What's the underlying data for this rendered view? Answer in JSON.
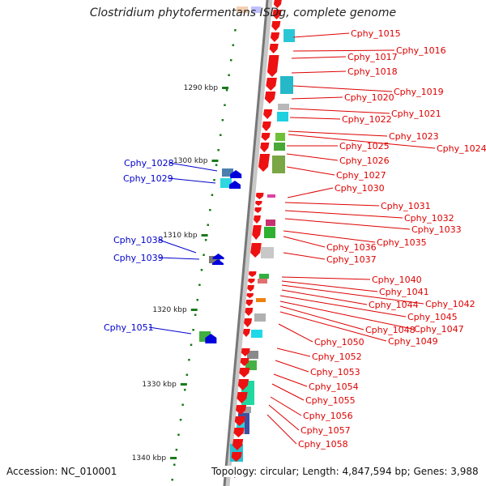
{
  "title": "Clostridium phytofermentans ISDg, complete genome",
  "accession": "Accession: NC_010001",
  "summary": "Topology: circular; Length: 4,847,594 bp; Genes: 3,988",
  "colors": {
    "ruler_dot": "#1a7a1a",
    "axis": "#777777",
    "plus_gene_label": "#0000cc",
    "minus_gene_label": "#dd0000",
    "minus_gene": "#ee1111",
    "plus_gene": "#0000dd"
  },
  "ruler_ticks": [
    "1290 kbp",
    "1300 kbp",
    "1310 kbp",
    "1320 kbp",
    "1330 kbp",
    "1340 kbp"
  ],
  "plus_strand_genes": [
    "Cphy_1028",
    "Cphy_1029",
    "Cphy_1038",
    "Cphy_1039",
    "Cphy_1051"
  ],
  "minus_strand_genes": [
    "Cphy_1015",
    "Cphy_1016",
    "Cphy_1017",
    "Cphy_1018",
    "Cphy_1019",
    "Cphy_1020",
    "Cphy_1021",
    "Cphy_1022",
    "Cphy_1023",
    "Cphy_1024",
    "Cphy_1025",
    "Cphy_1026",
    "Cphy_1027",
    "Cphy_1030",
    "Cphy_1031",
    "Cphy_1032",
    "Cphy_1033",
    "Cphy_1035",
    "Cphy_1036",
    "Cphy_1037",
    "Cphy_1040",
    "Cphy_1041",
    "Cphy_1042",
    "Cphy_1044",
    "Cphy_1045",
    "Cphy_1047",
    "Cphy_1048",
    "Cphy_1049",
    "Cphy_1050",
    "Cphy_1052",
    "Cphy_1053",
    "Cphy_1054",
    "Cphy_1055",
    "Cphy_1056",
    "Cphy_1057",
    "Cphy_1058"
  ]
}
